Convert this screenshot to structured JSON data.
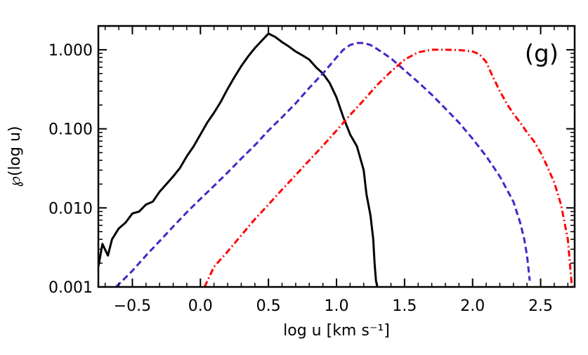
{
  "chart_data": {
    "type": "line",
    "panel_label": "(g)",
    "xlabel": "log u [km s⁻¹]",
    "ylabel": "℘(log u)",
    "x_scale": "linear",
    "y_scale": "log",
    "xlim": [
      -0.75,
      2.75
    ],
    "ylim": [
      0.001,
      2.0
    ],
    "x_ticks": [
      -0.5,
      0.0,
      0.5,
      1.0,
      1.5,
      2.0,
      2.5
    ],
    "x_tick_labels": [
      "−0.5",
      "0.0",
      "0.5",
      "1.0",
      "1.5",
      "2.0",
      "2.5"
    ],
    "y_ticks": [
      0.001,
      0.01,
      0.1,
      1.0
    ],
    "y_tick_labels": [
      "0.001",
      "0.010",
      "0.100",
      "1.000"
    ],
    "grid": false,
    "legend": "none",
    "series": [
      {
        "name": "solid",
        "color": "#000000",
        "style": "solid",
        "x": [
          -0.75,
          -0.72,
          -0.68,
          -0.65,
          -0.6,
          -0.55,
          -0.5,
          -0.45,
          -0.4,
          -0.35,
          -0.3,
          -0.25,
          -0.2,
          -0.15,
          -0.1,
          -0.05,
          0.0,
          0.05,
          0.1,
          0.15,
          0.2,
          0.25,
          0.3,
          0.35,
          0.4,
          0.45,
          0.5,
          0.55,
          0.6,
          0.65,
          0.7,
          0.75,
          0.8,
          0.85,
          0.9,
          0.95,
          1.0,
          1.05,
          1.1,
          1.15,
          1.2,
          1.22,
          1.25,
          1.27,
          1.28,
          1.29,
          1.3
        ],
        "y": [
          0.0018,
          0.0035,
          0.0025,
          0.004,
          0.0055,
          0.0065,
          0.0085,
          0.009,
          0.011,
          0.012,
          0.016,
          0.02,
          0.025,
          0.032,
          0.045,
          0.06,
          0.085,
          0.12,
          0.16,
          0.22,
          0.32,
          0.45,
          0.62,
          0.82,
          1.05,
          1.3,
          1.6,
          1.45,
          1.25,
          1.1,
          0.95,
          0.85,
          0.75,
          0.6,
          0.5,
          0.38,
          0.25,
          0.14,
          0.085,
          0.06,
          0.03,
          0.015,
          0.008,
          0.004,
          0.002,
          0.0012,
          0.001
        ]
      },
      {
        "name": "dashed",
        "color": "#4a22c8",
        "style": "dashed",
        "x": [
          -0.62,
          -0.5,
          -0.4,
          -0.3,
          -0.2,
          -0.1,
          0.0,
          0.1,
          0.2,
          0.3,
          0.4,
          0.5,
          0.6,
          0.7,
          0.8,
          0.9,
          1.0,
          1.05,
          1.1,
          1.15,
          1.2,
          1.25,
          1.3,
          1.4,
          1.5,
          1.6,
          1.7,
          1.8,
          1.9,
          2.0,
          2.1,
          2.2,
          2.3,
          2.35,
          2.38,
          2.4,
          2.42
        ],
        "y": [
          0.001,
          0.0016,
          0.0025,
          0.0038,
          0.0058,
          0.0088,
          0.013,
          0.019,
          0.028,
          0.042,
          0.062,
          0.095,
          0.14,
          0.21,
          0.33,
          0.5,
          0.8,
          1.0,
          1.15,
          1.22,
          1.22,
          1.15,
          1.02,
          0.78,
          0.55,
          0.39,
          0.27,
          0.18,
          0.12,
          0.075,
          0.045,
          0.025,
          0.012,
          0.0065,
          0.004,
          0.0025,
          0.0012
        ]
      },
      {
        "name": "dash-dot",
        "color": "#ff0000",
        "style": "dashdot",
        "x": [
          0.03,
          0.1,
          0.2,
          0.3,
          0.4,
          0.5,
          0.6,
          0.7,
          0.8,
          0.9,
          1.0,
          1.1,
          1.2,
          1.3,
          1.4,
          1.5,
          1.6,
          1.7,
          1.8,
          1.9,
          2.0,
          2.05,
          2.1,
          2.15,
          2.2,
          2.25,
          2.3,
          2.35,
          2.4,
          2.45,
          2.5,
          2.55,
          2.6,
          2.65,
          2.7,
          2.73
        ],
        "y": [
          0.001,
          0.0018,
          0.0028,
          0.0045,
          0.0072,
          0.011,
          0.017,
          0.026,
          0.04,
          0.061,
          0.095,
          0.15,
          0.23,
          0.36,
          0.53,
          0.75,
          0.93,
          1.0,
          1.0,
          0.99,
          0.95,
          0.88,
          0.7,
          0.45,
          0.3,
          0.21,
          0.155,
          0.12,
          0.09,
          0.07,
          0.05,
          0.033,
          0.021,
          0.011,
          0.004,
          0.001
        ]
      }
    ]
  }
}
